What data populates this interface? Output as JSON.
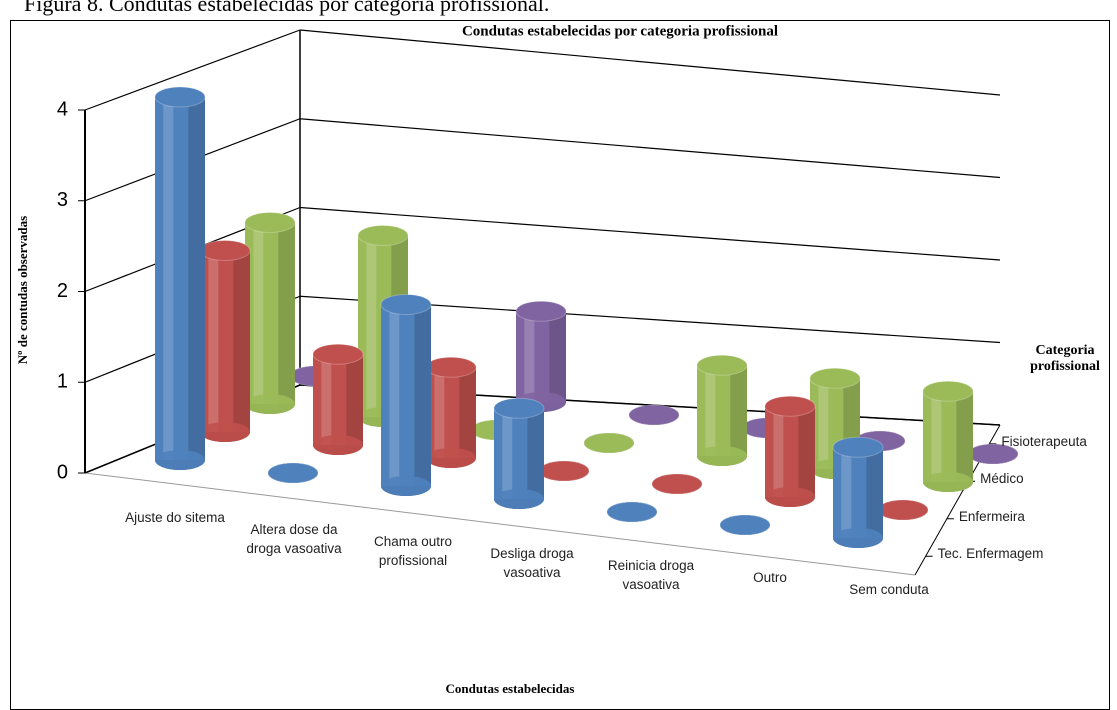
{
  "caption": "Figura 8. Condutas estabelecidas por categoria profissional.",
  "chart_data": {
    "type": "bar3d",
    "title": "Condutas estabelecidas por categoria profissional",
    "y_label": "Nº de contudas observadas",
    "x_label": "Condutas estabelecidas",
    "depth_label": "Categoria profissional",
    "categories": [
      "Ajuste do sitema",
      "Altera dose da droga vasoativa",
      "Chama outro profissional",
      "Desliga droga vasoativa",
      "Reinicia droga vasoativa",
      "Outro",
      "Sem conduta"
    ],
    "series": [
      {
        "name": "Tec. Enfermagem",
        "color": "#4f81bd",
        "values": [
          4,
          0,
          2,
          1,
          0,
          0,
          1
        ]
      },
      {
        "name": "Enfermeira",
        "color": "#c0504d",
        "values": [
          2,
          1,
          1,
          0,
          0,
          1,
          0
        ]
      },
      {
        "name": "Médico",
        "color": "#9bbb59",
        "values": [
          2,
          2,
          0,
          0,
          1,
          1,
          1
        ]
      },
      {
        "name": "Fisioterapeuta",
        "color": "#8064a2",
        "values": [
          0,
          0,
          1,
          0,
          0,
          0,
          0
        ]
      }
    ],
    "ylim": [
      0,
      4
    ],
    "yticks": [
      0,
      1,
      2,
      3,
      4
    ],
    "grid": true
  }
}
